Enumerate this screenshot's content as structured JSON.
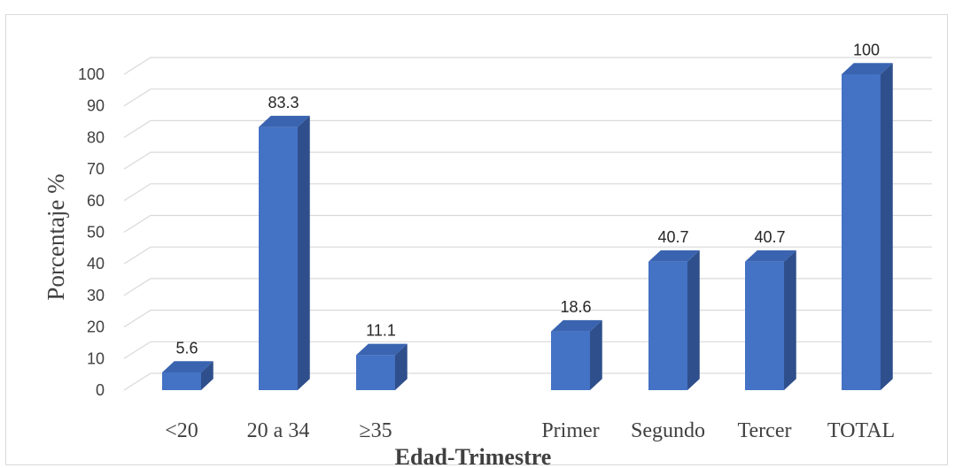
{
  "chart_data": {
    "type": "bar",
    "title": "",
    "xlabel": "Edad-Trimestre",
    "ylabel": "Porcentaje %",
    "ylim": [
      0,
      100
    ],
    "yticks": [
      0,
      10,
      20,
      30,
      40,
      50,
      60,
      70,
      80,
      90,
      100
    ],
    "grid": true,
    "legend": "none",
    "style": "3d-columns",
    "categories": [
      "<20",
      "20 a 34",
      "≥35",
      "Primer",
      "Segundo",
      "Tercer",
      "TOTAL"
    ],
    "values": [
      5.6,
      83.3,
      11.1,
      18.6,
      40.7,
      40.7,
      100
    ],
    "data_labels": [
      "5.6",
      "83.3",
      "11.1",
      "18.6",
      "40.7",
      "40.7",
      "100"
    ],
    "gap_after_category": "≥35",
    "colors": {
      "bar_front": "#4472c4",
      "bar_side": "#2f4f8c",
      "bar_top": "#3a64b0",
      "grid": "#d9d9d9",
      "text": "#404040"
    }
  }
}
